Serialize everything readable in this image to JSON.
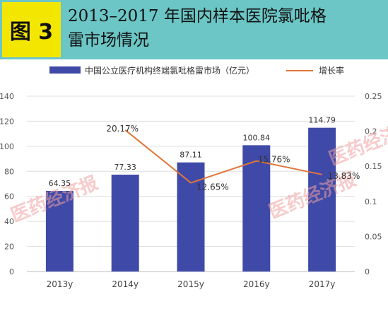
{
  "header": {
    "badge": "图 3",
    "title_line1": "2013–2017 年国内样本医院氯吡格",
    "title_line2": "雷市场情况"
  },
  "colors": {
    "header_bg": "#6cc6c6",
    "badge_bg": "#f3e600",
    "bar": "#3f4aa8",
    "line": "#e0763a",
    "watermark": "#f0a0a0"
  },
  "watermark": "医药经济报",
  "chart_data": {
    "type": "bar+line",
    "categories": [
      "2013y",
      "2014y",
      "2015y",
      "2016y",
      "2017y"
    ],
    "series": [
      {
        "name": "中国公立医疗机构终端氯吡格雷市场（亿元）",
        "type": "bar",
        "axis": "left",
        "values": [
          64.35,
          77.33,
          87.11,
          100.84,
          114.79
        ],
        "labels": [
          "64.35",
          "77.33",
          "87.11",
          "100.84",
          "114.79"
        ]
      },
      {
        "name": "增长率",
        "type": "line",
        "axis": "right",
        "values": [
          null,
          0.2017,
          0.1265,
          0.1576,
          0.1383
        ],
        "labels": [
          "",
          "20.17%",
          "12.65%",
          "15.76%",
          "13.83%"
        ]
      }
    ],
    "left_axis": {
      "range": [
        0,
        140
      ],
      "ticks": [
        "0",
        "20",
        "40",
        "60",
        "80",
        "100",
        "120",
        "140"
      ]
    },
    "right_axis": {
      "range": [
        0,
        0.25
      ],
      "ticks": [
        "0",
        "0.05",
        "0.1",
        "0.15",
        "0.2",
        "0.25"
      ]
    },
    "grid": true,
    "legend_position": "top"
  }
}
